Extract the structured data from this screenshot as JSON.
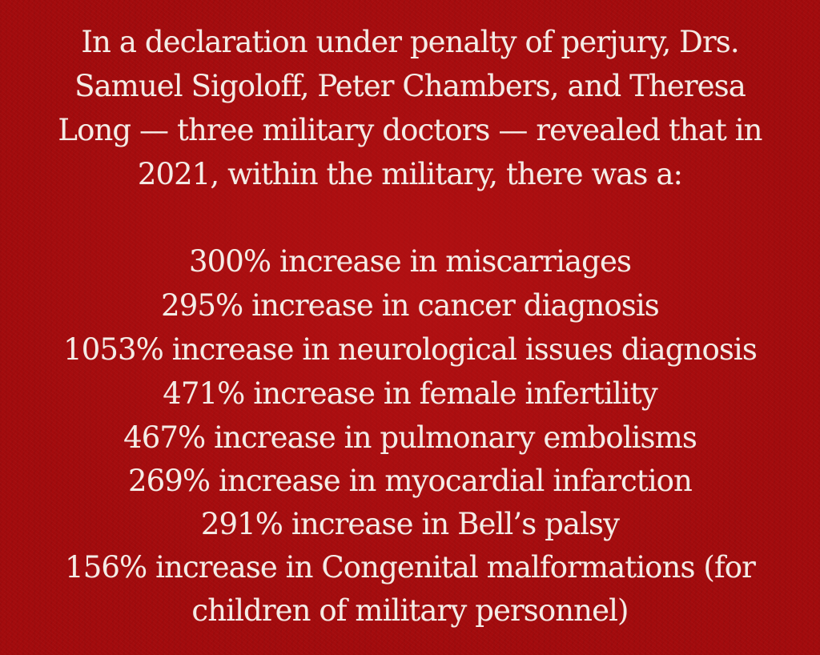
{
  "intro_lines": [
    "In a declaration under penalty of perjury, Drs.",
    "Samuel Sigoloff, Peter Chambers, and Theresa",
    "Long — three military doctors — revealed that in",
    "2021, within the military, there was a:"
  ],
  "stat_lines": [
    "300% increase in miscarriages",
    "295% increase in cancer diagnosis",
    "1053% increase in neurological issues diagnosis",
    "471% increase in female infertility",
    "467% increase in pulmonary embolisms",
    "269% increase in myocardial infarction",
    "291% increase in Bell’s palsy",
    "156% increase in Congenital malformations (for",
    "children of military personnel)"
  ],
  "colors": {
    "background": "#a30b0d",
    "text": "#f4ece6"
  }
}
